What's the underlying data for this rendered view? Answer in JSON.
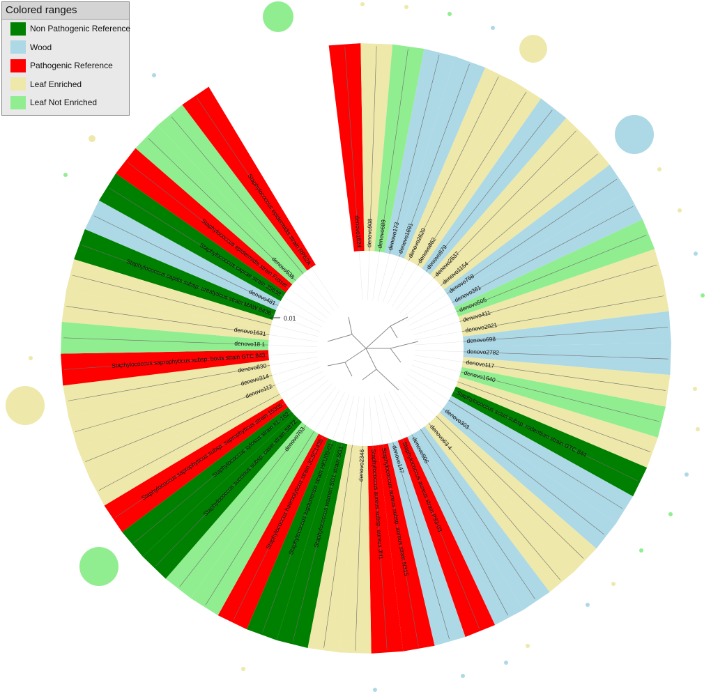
{
  "legend": {
    "title": "Colored ranges",
    "items": [
      {
        "key": "npr",
        "label": "Non Pathogenic Reference",
        "color": "#008000"
      },
      {
        "key": "wood",
        "label": "Wood",
        "color": "#add8e6"
      },
      {
        "key": "pr",
        "label": "Pathogenic Reference",
        "color": "#ff0000"
      },
      {
        "key": "le",
        "label": "Leaf Enriched",
        "color": "#eee8aa"
      },
      {
        "key": "lne",
        "label": "Leaf Not Enriched",
        "color": "#90ee90"
      }
    ]
  },
  "scale_label": "0.01",
  "leaves": [
    {
      "label": "denovo1824",
      "cat": "pr"
    },
    {
      "label": "denovo908",
      "cat": "le"
    },
    {
      "label": "denovo689",
      "cat": "lne"
    },
    {
      "label": "denovo173",
      "cat": "wood"
    },
    {
      "label": "denovo1691",
      "cat": "wood"
    },
    {
      "label": "denovo2620",
      "cat": "le"
    },
    {
      "label": "denovo862",
      "cat": "le"
    },
    {
      "label": "denovo979",
      "cat": "wood"
    },
    {
      "label": "denovo2537",
      "cat": "le"
    },
    {
      "label": "denovo1154",
      "cat": "le"
    },
    {
      "label": "denovo758",
      "cat": "wood"
    },
    {
      "label": "denovo361",
      "cat": "wood"
    },
    {
      "label": "denovo505",
      "cat": "lne"
    },
    {
      "label": "denovo411",
      "cat": "le"
    },
    {
      "label": "denovo2021",
      "cat": "le"
    },
    {
      "label": "denovo698",
      "cat": "wood"
    },
    {
      "label": "denovo2782",
      "cat": "wood"
    },
    {
      "label": "denovo117",
      "cat": "le"
    },
    {
      "label": "denovo1640",
      "cat": "lne"
    },
    {
      "label": "",
      "cat": "le"
    },
    {
      "label": "Staphylococcus sciuri subsp. rodentium strain GTC 844",
      "cat": "npr"
    },
    {
      "label": "",
      "cat": "wood"
    },
    {
      "label": "denovo303",
      "cat": "wood"
    },
    {
      "label": "",
      "cat": "le"
    },
    {
      "label": "denovo63 4",
      "cat": "le"
    },
    {
      "label": "",
      "cat": "wood"
    },
    {
      "label": "denovo506",
      "cat": "wood"
    },
    {
      "label": "Staphylococcus aureus strain P93-03",
      "cat": "pr"
    },
    {
      "label": "denovo147",
      "cat": "wood"
    },
    {
      "label": "Staphylococcus aureus subsp. aureus strain N315",
      "cat": "pr"
    },
    {
      "label": "Staphylococcus aureus subsp. aureus JH1",
      "cat": "pr"
    },
    {
      "label": "denovo2346",
      "cat": "le"
    },
    {
      "label": "",
      "cat": "le"
    },
    {
      "label": "Staphylococcus warneri SG1 strain SG1",
      "cat": "npr"
    },
    {
      "label": "Staphylococcus lugdunensis strain HKU09-01",
      "cat": "npr"
    },
    {
      "label": "Staphylococcus haemolyticus strain JCSC1435",
      "cat": "pr"
    },
    {
      "label": "",
      "cat": "lne"
    },
    {
      "label": "denovo703",
      "cat": "lne"
    },
    {
      "label": "Staphylococcus succinus subsp. casei strain SB72",
      "cat": "npr"
    },
    {
      "label": "Staphylococcus xylosus strain KL-162",
      "cat": "npr"
    },
    {
      "label": "Staphylococcus saprophyticus subsp. saprophyticus strain 15305",
      "cat": "pr"
    },
    {
      "label": "",
      "cat": "le"
    },
    {
      "label": "denovo112",
      "cat": "le"
    },
    {
      "label": "denovo314",
      "cat": "le"
    },
    {
      "label": "denovo830",
      "cat": "le"
    },
    {
      "label": "Staphylococcus saprophyticus subsp. bovis strain GTC 843",
      "cat": "pr"
    },
    {
      "label": "denovo18 1",
      "cat": "lne"
    },
    {
      "label": "denovo1631",
      "cat": "le"
    },
    {
      "label": "",
      "cat": "le"
    },
    {
      "label": "Staphylococcus capitis subsp. urealyticus strain MAW 8436",
      "cat": "npr"
    },
    {
      "label": "denovo481",
      "cat": "wood"
    },
    {
      "label": "Staphylococcus caprae strain JS638",
      "cat": "npr"
    },
    {
      "label": "Staphylococcus epidermidis strain Fussel",
      "cat": "pr"
    },
    {
      "label": "denovo538",
      "cat": "lne"
    },
    {
      "label": "",
      "cat": "lne"
    },
    {
      "label": "Staphylococcus epidermidis strain RP62A",
      "cat": "pr"
    }
  ]
}
